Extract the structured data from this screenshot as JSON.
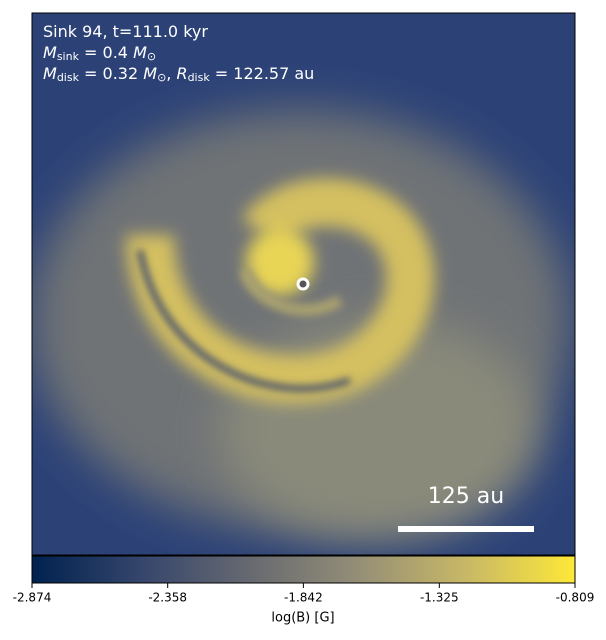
{
  "chart_data": {
    "type": "image",
    "annotations": [
      [
        "Sink 94, t=111.0 kyr"
      ],
      [
        "M",
        "sink",
        " = 0.4 ",
        "M",
        "⊙"
      ],
      [
        "M",
        "disk",
        " = 0.32 ",
        "M",
        "⊙",
        ", ",
        "R",
        "disk",
        " = 122.57 au"
      ]
    ],
    "scale_bar_label": "125 au",
    "colorbar_label": "log(B) [G]",
    "colorbar_lim": [
      -2.874,
      -0.809
    ],
    "colorbar_ticks": [
      -2.874,
      -2.358,
      -1.842,
      -1.325,
      -0.809
    ],
    "colormap": [
      "#00224e",
      "#35456c",
      "#666970",
      "#948e77",
      "#c8b866",
      "#fee838"
    ]
  }
}
